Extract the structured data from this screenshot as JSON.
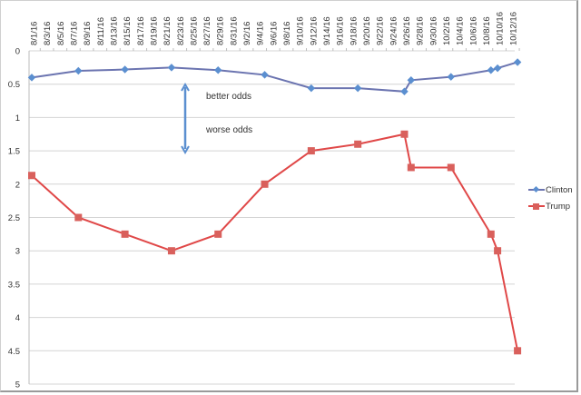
{
  "chart_data": {
    "type": "line",
    "title": "",
    "xlabel": "",
    "ylabel": "",
    "ylim": [
      0,
      5
    ],
    "y_inverted": true,
    "y_ticks": [
      "0",
      "0.5",
      "1",
      "1.5",
      "2",
      "2.5",
      "3",
      "3.5",
      "4",
      "4.5",
      "5"
    ],
    "x_tick_labels": [
      "8/1/16",
      "8/3/16",
      "8/5/16",
      "8/7/16",
      "8/9/16",
      "8/11/16",
      "8/13/16",
      "8/15/16",
      "8/17/16",
      "8/19/16",
      "8/21/16",
      "8/23/16",
      "8/25/16",
      "8/27/16",
      "8/29/16",
      "8/31/16",
      "9/2/16",
      "9/4/16",
      "9/6/16",
      "9/8/16",
      "9/10/16",
      "9/12/16",
      "9/14/16",
      "9/16/16",
      "9/18/16",
      "9/20/16",
      "9/22/16",
      "9/24/16",
      "9/26/16",
      "9/28/16",
      "9/30/16",
      "10/2/16",
      "10/4/16",
      "10/6/16",
      "10/8/16",
      "10/10/16",
      "10/12/16"
    ],
    "grid": true,
    "legend_position": "right",
    "x": [
      "8/1/16",
      "8/8/16",
      "8/15/16",
      "8/22/16",
      "8/29/16",
      "9/5/16",
      "9/12/16",
      "9/19/16",
      "9/26/16",
      "9/27/16",
      "10/3/16",
      "10/9/16",
      "10/10/16",
      "10/13/16"
    ],
    "series": [
      {
        "name": "Clinton",
        "color": "#6b74b0",
        "marker": "diamond",
        "marker_color": "#5b8fd0",
        "values": [
          0.4,
          0.3,
          0.28,
          0.25,
          0.29,
          0.36,
          0.56,
          0.56,
          0.61,
          0.44,
          0.39,
          0.29,
          0.26,
          0.17
        ]
      },
      {
        "name": "Trump",
        "color": "#e04848",
        "marker": "square",
        "marker_color": "#d9605c",
        "values": [
          1.87,
          2.5,
          2.75,
          3.0,
          2.75,
          2.0,
          1.5,
          1.4,
          1.25,
          1.75,
          1.75,
          2.75,
          3.0,
          4.5
        ]
      }
    ],
    "annotations": [
      {
        "text": "better odds",
        "arrow": "up",
        "color": "#5b8fd0"
      },
      {
        "text": "worse odds",
        "arrow": "down",
        "color": "#5b8fd0"
      }
    ]
  },
  "legend": {
    "items": [
      {
        "label": "Clinton"
      },
      {
        "label": "Trump"
      }
    ]
  },
  "annotations": {
    "better": "better odds",
    "worse": "worse odds"
  }
}
